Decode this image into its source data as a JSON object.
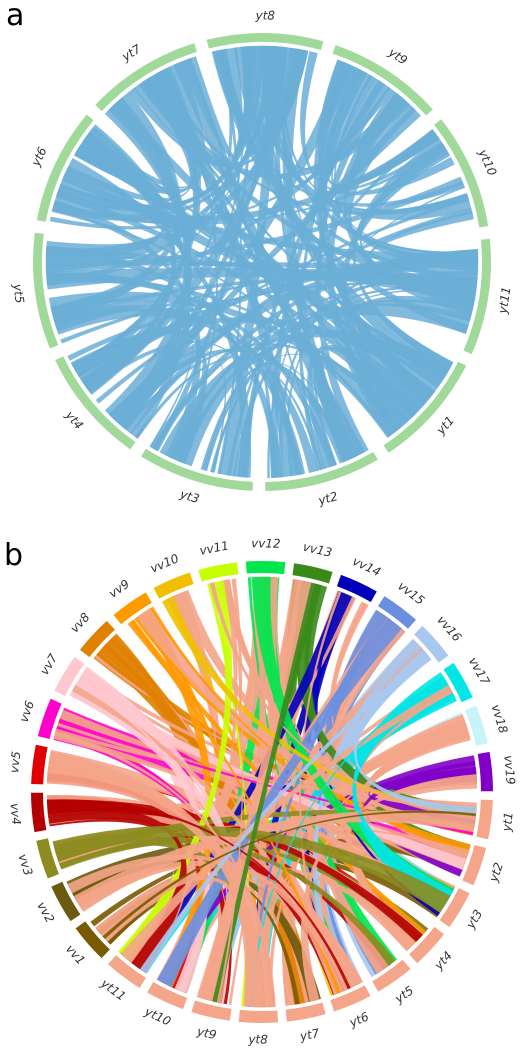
{
  "panels": [
    {
      "letter": "a",
      "ribbon_color": "#6baed6",
      "segments": [
        {
          "label": "yt8",
          "color": "#a1d99b"
        },
        {
          "label": "yt9",
          "color": "#a1d99b"
        },
        {
          "label": "yt10",
          "color": "#a1d99b"
        },
        {
          "label": "yt11",
          "color": "#a1d99b"
        },
        {
          "label": "yt1",
          "color": "#a1d99b"
        },
        {
          "label": "yt2",
          "color": "#a1d99b"
        },
        {
          "label": "yt3",
          "color": "#a1d99b"
        },
        {
          "label": "yt4",
          "color": "#a1d99b"
        },
        {
          "label": "yt5",
          "color": "#a1d99b"
        },
        {
          "label": "yt6",
          "color": "#a1d99b"
        },
        {
          "label": "yt7",
          "color": "#a1d99b"
        }
      ]
    },
    {
      "letter": "b",
      "segments": [
        {
          "label": "vv12",
          "color": "#00e64d"
        },
        {
          "label": "vv13",
          "color": "#3a8a1a"
        },
        {
          "label": "vv14",
          "color": "#0000bb"
        },
        {
          "label": "vv15",
          "color": "#6b8fe0"
        },
        {
          "label": "vv16",
          "color": "#a8c8f0"
        },
        {
          "label": "vv17",
          "color": "#00e6e6"
        },
        {
          "label": "vv18",
          "color": "#c8f4f8"
        },
        {
          "label": "vv19",
          "color": "#8000c8"
        },
        {
          "label": "yt1",
          "color": "#f4a58a"
        },
        {
          "label": "yt2",
          "color": "#f4a58a"
        },
        {
          "label": "yt3",
          "color": "#f4a58a"
        },
        {
          "label": "yt4",
          "color": "#f4a58a"
        },
        {
          "label": "yt5",
          "color": "#f4a58a"
        },
        {
          "label": "yt6",
          "color": "#f4a58a"
        },
        {
          "label": "yt7",
          "color": "#f4a58a"
        },
        {
          "label": "yt8",
          "color": "#f4a58a"
        },
        {
          "label": "yt9",
          "color": "#f4a58a"
        },
        {
          "label": "yt10",
          "color": "#f4a58a"
        },
        {
          "label": "yt11",
          "color": "#f4a58a"
        },
        {
          "label": "vv1",
          "color": "#7a5a00"
        },
        {
          "label": "vv2",
          "color": "#6b5a10"
        },
        {
          "label": "vv3",
          "color": "#8c8c20"
        },
        {
          "label": "vv4",
          "color": "#b40000"
        },
        {
          "label": "vv5",
          "color": "#e00000"
        },
        {
          "label": "vv6",
          "color": "#ff00cc"
        },
        {
          "label": "vv7",
          "color": "#ffc8d0"
        },
        {
          "label": "vv8",
          "color": "#e08000"
        },
        {
          "label": "vv9",
          "color": "#ff9900"
        },
        {
          "label": "vv10",
          "color": "#f0c000"
        },
        {
          "label": "vv11",
          "color": "#c8ff00"
        }
      ]
    }
  ]
}
